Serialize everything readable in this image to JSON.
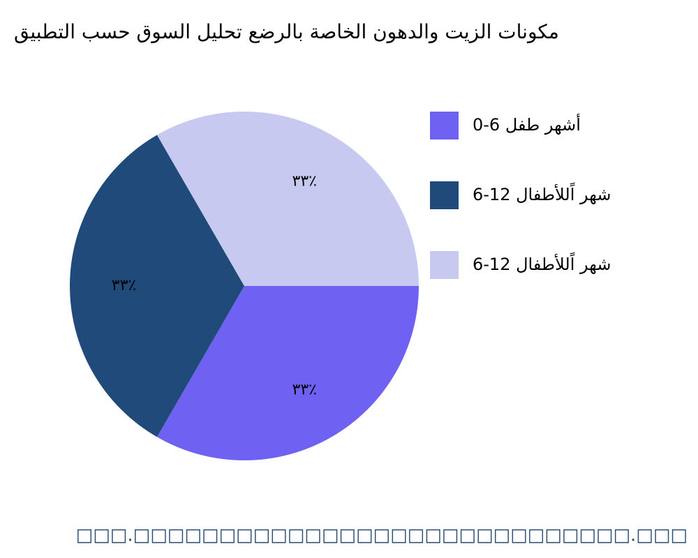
{
  "chart_data": {
    "type": "pie",
    "title": "مكونات الزيت والدهون الخاصة بالرضع تحليل السوق حسب التطبيق",
    "categories": [
      "0-6 أشهر طفل",
      "6-12 شهر اًللأطفال",
      "6-12 شهر اًللأطفال"
    ],
    "values": [
      33,
      33,
      33
    ],
    "value_labels": [
      "٣٣٪",
      "٣٣٪",
      "٣٣٪"
    ],
    "colors": [
      "#6f61f2",
      "#1f4a7a",
      "#c8c9f0"
    ],
    "legend": "right",
    "source": "□□□.□□□□□□□□□□□□□□□□□□□□□□□□□□□□□.□□□"
  }
}
